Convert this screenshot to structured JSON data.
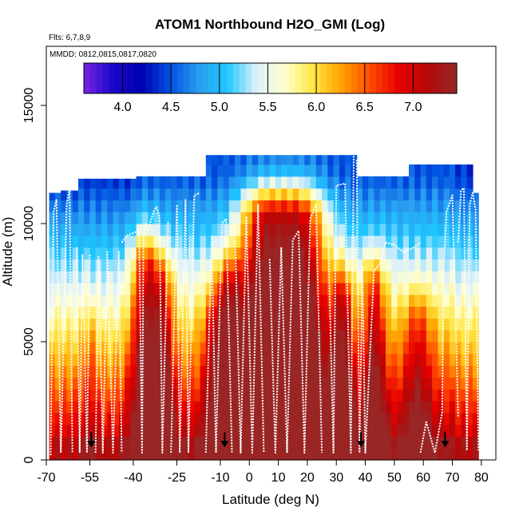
{
  "chart_data": {
    "type": "heatmap",
    "title": "ATOM1 Northbound H2O_GMI (Log)",
    "flights_label": "Flts: 6,7,8,9",
    "dates_label": "MMDD: 0812,0815,0817,0820",
    "xlabel": "Latitude (deg N)",
    "ylabel": "Altitude (m)",
    "xlim": [
      -70,
      85
    ],
    "ylim": [
      0,
      17500
    ],
    "x_ticks": [
      -70,
      -55,
      -40,
      -25,
      -10,
      0,
      10,
      20,
      30,
      40,
      50,
      60,
      70,
      80
    ],
    "x_tick_labels": [
      "-70",
      "-55",
      "-40",
      "-25",
      "-10",
      "0",
      "10",
      "20",
      "30",
      "40",
      "50",
      "60",
      "70",
      "80"
    ],
    "y_ticks": [
      0,
      5000,
      10000,
      15000
    ],
    "y_tick_labels": [
      "0",
      "5000",
      "10000",
      "15000"
    ],
    "colorbar": {
      "range": [
        3.6,
        7.45
      ],
      "ticks": [
        4.0,
        4.5,
        5.0,
        5.5,
        6.0,
        6.5,
        7.0
      ],
      "tick_labels": [
        "4.0",
        "4.5",
        "5.0",
        "5.5",
        "6.0",
        "6.5",
        "7.0"
      ],
      "colors": [
        "#7a22e6",
        "#1a08c8",
        "#0000b0",
        "#0050e0",
        "#2a9cf0",
        "#1ec6ff",
        "#dcf0fa",
        "#ffffd0",
        "#ffe640",
        "#ffa000",
        "#ff4800",
        "#e60000",
        "#b40808",
        "#962828"
      ]
    },
    "column_tops": [
      {
        "lat0": -69,
        "lat1": -64,
        "top": 11300
      },
      {
        "lat0": -64,
        "lat1": -58,
        "top": 11400
      },
      {
        "lat0": -58,
        "lat1": -38,
        "top": 11900
      },
      {
        "lat0": -38,
        "lat1": -14,
        "top": 12000
      },
      {
        "lat0": -14,
        "lat1": 38,
        "top": 12900
      },
      {
        "lat0": 38,
        "lat1": 56,
        "top": 12000
      },
      {
        "lat0": 56,
        "lat1": 77,
        "top": 12500
      },
      {
        "lat0": 77,
        "lat1": 80,
        "top": 11300
      }
    ],
    "moist_plumes": [
      {
        "center": -55,
        "width": 3,
        "height": 5000,
        "amp": 0.3
      },
      {
        "center": -36,
        "width": 5,
        "height": 8000,
        "amp": 1.3
      },
      {
        "center": -30,
        "width": 4,
        "height": 7000,
        "amp": 1.0
      },
      {
        "center": -12,
        "width": 4,
        "height": 5500,
        "amp": 0.7
      },
      {
        "center": -7,
        "width": 5,
        "height": 7000,
        "amp": 1.2
      },
      {
        "center": 5,
        "width": 9,
        "height": 10000,
        "amp": 1.9
      },
      {
        "center": 18,
        "width": 9,
        "height": 10000,
        "amp": 1.9
      },
      {
        "center": 32,
        "width": 4,
        "height": 6500,
        "amp": 1.2
      },
      {
        "center": 43,
        "width": 4,
        "height": 7000,
        "amp": 1.1
      },
      {
        "center": 58,
        "width": 5,
        "height": 5500,
        "amp": 0.7
      }
    ],
    "flight_profiles": [
      {
        "lat": [
          -68.5,
          -67.5,
          -66.5,
          -65,
          -63,
          -62,
          -61
        ],
        "alt": [
          200,
          10500,
          11000,
          300,
          10800,
          11400,
          300
        ]
      },
      {
        "lat": [
          -59.5,
          -58.5,
          -57.5,
          -56,
          -55
        ],
        "alt": [
          9000,
          300,
          8700,
          300,
          8700
        ]
      },
      {
        "lat": [
          -53,
          -52,
          -50.5,
          -49,
          -47,
          -45,
          -44
        ],
        "alt": [
          300,
          8600,
          300,
          8800,
          300,
          8800,
          300
        ]
      },
      {
        "lat": [
          -44,
          -42,
          -40,
          -38,
          -37,
          -36.5,
          -36,
          -35.5
        ],
        "alt": [
          9200,
          9500,
          9600,
          9700,
          300,
          9400,
          9800,
          10000
        ]
      },
      {
        "lat": [
          -35,
          -33,
          -32,
          -31,
          -30,
          -28
        ],
        "alt": [
          9700,
          10500,
          10700,
          10300,
          300,
          10100
        ]
      },
      {
        "lat": [
          -27,
          -25,
          -24,
          -22,
          -21,
          -19,
          -17
        ],
        "alt": [
          300,
          10800,
          300,
          11000,
          300,
          11200,
          11300
        ]
      },
      {
        "lat": [
          -15,
          -13,
          -11.5,
          -9.5,
          -8,
          -6
        ],
        "alt": [
          300,
          9500,
          300,
          10000,
          10200,
          300
        ]
      },
      {
        "lat": [
          -5,
          -3,
          -1,
          1,
          3,
          5
        ],
        "alt": [
          10000,
          300,
          10300,
          300,
          10800,
          300
        ]
      },
      {
        "lat": [
          7,
          9,
          11,
          13,
          15,
          17,
          19,
          21,
          23,
          25
        ],
        "alt": [
          8500,
          300,
          9000,
          300,
          9300,
          9700,
          300,
          10200,
          10800,
          300
        ]
      },
      {
        "lat": [
          27,
          29,
          30,
          33,
          35,
          36
        ],
        "alt": [
          10600,
          300,
          11600,
          11700,
          300,
          12900
        ]
      },
      {
        "lat": [
          37,
          38,
          39,
          40,
          43,
          45,
          47
        ],
        "alt": [
          12700,
          300,
          8200,
          300,
          8000,
          8300,
          9200
        ]
      },
      {
        "lat": [
          47,
          50,
          53,
          55,
          57,
          59
        ],
        "alt": [
          9200,
          9100,
          8800,
          8900,
          9000,
          9200
        ]
      },
      {
        "lat": [
          59,
          61,
          64,
          66.5,
          67,
          68,
          70,
          72
        ],
        "alt": [
          300,
          1600,
          300,
          2000,
          8000,
          10500,
          11200,
          1800
        ]
      },
      {
        "lat": [
          72,
          73,
          74,
          75,
          76,
          77,
          78,
          79
        ],
        "alt": [
          9200,
          11400,
          11500,
          400,
          10800,
          11300,
          10600,
          400
        ]
      }
    ],
    "flight_markers": [
      -54.5,
      -8.5,
      38.5,
      67.5
    ]
  }
}
